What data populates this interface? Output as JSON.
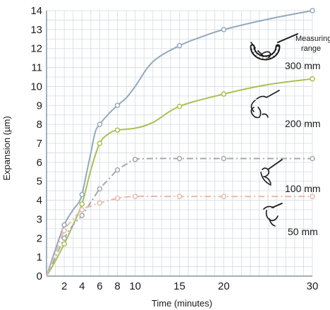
{
  "chart_data": {
    "type": "line",
    "title": "",
    "xlabel": "Time (minutes)",
    "ylabel": "Expansion (µm)",
    "xlim": [
      0,
      30
    ],
    "ylim": [
      0,
      14
    ],
    "x_ticks": [
      2,
      4,
      6,
      8,
      10,
      15,
      20,
      30
    ],
    "x_tick_labels": [
      "2",
      "4",
      "6",
      "8",
      "10",
      "15",
      "20",
      "30"
    ],
    "y_ticks": [
      0,
      1,
      2,
      3,
      4,
      5,
      6,
      7,
      8,
      9,
      10,
      11,
      12,
      13,
      14
    ],
    "y_tick_labels": [
      "0",
      "1",
      "2",
      "3",
      "4",
      "5",
      "6",
      "7",
      "8",
      "9",
      "10",
      "11",
      "12",
      "13",
      "14"
    ],
    "grid": true,
    "annotation": "Measuring range",
    "series": [
      {
        "name": "300 mm",
        "color": "#93a9bc",
        "dash": "solid",
        "line_points": [
          [
            0,
            0
          ],
          [
            1,
            1.4
          ],
          [
            2,
            2.7
          ],
          [
            3,
            3.5
          ],
          [
            3.6,
            3.85
          ],
          [
            4,
            4.3
          ],
          [
            4.5,
            5.4
          ],
          [
            5,
            6.5
          ],
          [
            5.5,
            7.6
          ],
          [
            6,
            8.0
          ],
          [
            7,
            8.55
          ],
          [
            8,
            9.0
          ],
          [
            9,
            9.4
          ],
          [
            10,
            10.0
          ],
          [
            12,
            11.3
          ],
          [
            15,
            12.15
          ],
          [
            18,
            12.7
          ],
          [
            20,
            13.0
          ],
          [
            25,
            13.55
          ],
          [
            30,
            14.0
          ]
        ],
        "markers": [
          [
            2,
            2.7
          ],
          [
            4,
            4.3
          ],
          [
            6,
            8.0
          ],
          [
            8,
            9.0
          ],
          [
            15,
            12.15
          ],
          [
            20,
            13.0
          ],
          [
            30,
            14.0
          ]
        ]
      },
      {
        "name": "200 mm",
        "color": "#a7c152",
        "dash": "solid",
        "line_points": [
          [
            0,
            0
          ],
          [
            1,
            0.8
          ],
          [
            2,
            1.7
          ],
          [
            3,
            2.7
          ],
          [
            4,
            3.8
          ],
          [
            5,
            5.6
          ],
          [
            6,
            7.0
          ],
          [
            7,
            7.5
          ],
          [
            8,
            7.7
          ],
          [
            10,
            7.8
          ],
          [
            12,
            8.1
          ],
          [
            15,
            8.95
          ],
          [
            20,
            9.6
          ],
          [
            25,
            10.1
          ],
          [
            30,
            10.4
          ]
        ],
        "markers": [
          [
            2,
            1.7
          ],
          [
            4,
            3.8
          ],
          [
            6,
            7.0
          ],
          [
            8,
            7.7
          ],
          [
            15,
            8.95
          ],
          [
            20,
            9.6
          ],
          [
            30,
            10.4
          ]
        ]
      },
      {
        "name": "100 mm",
        "color": "#a6a7a9",
        "dash": "dashdot",
        "line_points": [
          [
            0,
            0
          ],
          [
            1,
            1.0
          ],
          [
            2,
            2.0
          ],
          [
            3,
            2.7
          ],
          [
            4,
            3.2
          ],
          [
            5,
            3.9
          ],
          [
            6,
            4.6
          ],
          [
            7,
            5.1
          ],
          [
            8,
            5.6
          ],
          [
            9,
            5.9
          ],
          [
            10,
            6.15
          ],
          [
            12,
            6.2
          ],
          [
            15,
            6.2
          ],
          [
            20,
            6.2
          ],
          [
            30,
            6.2
          ]
        ],
        "markers": [
          [
            2,
            2.0
          ],
          [
            4,
            3.2
          ],
          [
            6,
            4.6
          ],
          [
            8,
            5.6
          ],
          [
            10,
            6.15
          ],
          [
            15,
            6.2
          ],
          [
            20,
            6.2
          ],
          [
            30,
            6.2
          ]
        ]
      },
      {
        "name": "50 mm",
        "color": "#e8b9a8",
        "dash": "dashdot",
        "line_points": [
          [
            0,
            0
          ],
          [
            1,
            1.2
          ],
          [
            2,
            2.4
          ],
          [
            3,
            3.0
          ],
          [
            4,
            3.5
          ],
          [
            5,
            3.7
          ],
          [
            6,
            3.85
          ],
          [
            8,
            4.1
          ],
          [
            10,
            4.2
          ],
          [
            15,
            4.2
          ],
          [
            20,
            4.2
          ],
          [
            30,
            4.2
          ]
        ],
        "markers": [
          [
            2,
            2.4
          ],
          [
            4,
            3.5
          ],
          [
            6,
            3.85
          ],
          [
            8,
            4.1
          ],
          [
            10,
            4.2
          ],
          [
            15,
            4.2
          ],
          [
            20,
            4.2
          ],
          [
            30,
            4.2
          ]
        ]
      }
    ]
  }
}
